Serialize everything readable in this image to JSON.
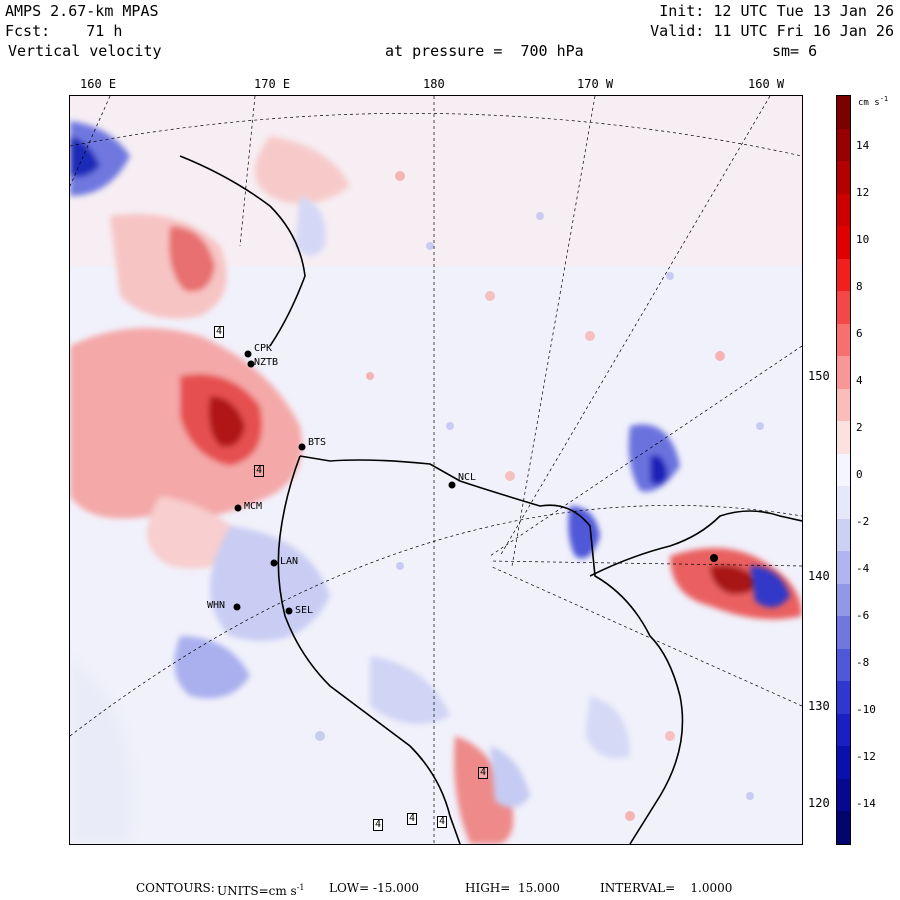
{
  "header": {
    "model": "AMPS 2.67-km MPAS",
    "forecast": "Fcst:    71 h",
    "field": "Vertical velocity",
    "init": "Init: 12 UTC Tue 13 Jan 26",
    "valid": "Valid: 11 UTC Fri 16 Jan 26",
    "pressure": "at pressure =  700 hPa",
    "smoothing": "sm= 6"
  },
  "longitude_labels": [
    "160 E",
    "170 E",
    "180",
    "170 W",
    "160 W"
  ],
  "latitude_labels": [
    "150 W",
    "140 W",
    "130 W",
    "120 W"
  ],
  "colorbar": {
    "units": "cm s",
    "units_exponent": "-1",
    "ticks": [
      "14",
      "12",
      "10",
      "8",
      "6",
      "4",
      "2",
      "0",
      "-2",
      "-4",
      "-6",
      "-8",
      "-10",
      "-12",
      "-14"
    ],
    "colors": [
      "#7a0000",
      "#960000",
      "#b20000",
      "#cc0000",
      "#e00000",
      "#f02020",
      "#f44848",
      "#f77070",
      "#f99797",
      "#fbbcbc",
      "#fde0e0",
      "#f5f5ff",
      "#e6e8fa",
      "#cdd0f5",
      "#b0b5ef",
      "#9198e8",
      "#7078e0",
      "#4f58d8",
      "#2e38d0",
      "#1820c4",
      "#0a10ae",
      "#06098f",
      "#03056f"
    ]
  },
  "stations": [
    "CPK",
    "NZTB",
    "BTS",
    "MCM",
    "LAN",
    "WHN",
    "SEL",
    "NCL"
  ],
  "contour_labels": [
    "4",
    "4",
    "4",
    "4",
    "4",
    "4"
  ],
  "footer": {
    "contours": "CONTOURS:",
    "units_label": "UNITS=cm s",
    "units_exponent": "-1",
    "low": "LOW= -15.000",
    "high": "HIGH=  15.000",
    "interval": "INTERVAL=    1.0000"
  }
}
